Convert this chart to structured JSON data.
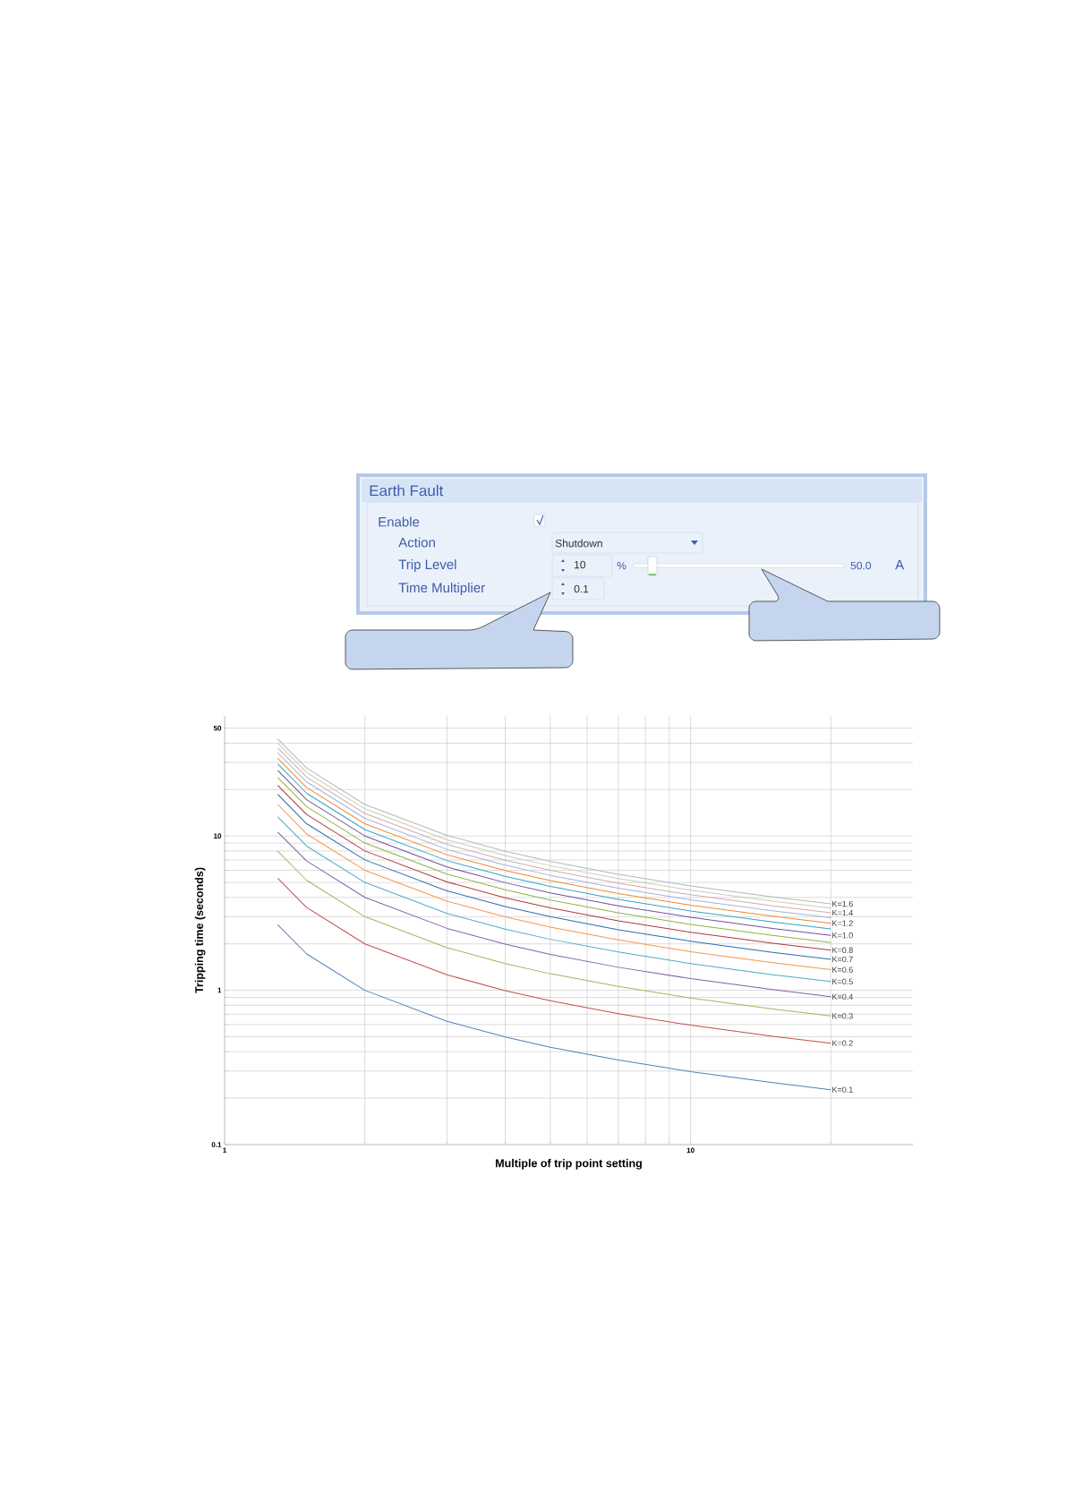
{
  "chart_data": [
    {
      "type": "other",
      "annotations": [
        "Earth Fault",
        "Enable",
        "Action",
        "Shutdown",
        "Trip Level",
        "10",
        "%",
        "50.0",
        "A",
        "Time Multiplier",
        "0.1"
      ]
    },
    {
      "type": "line",
      "xlabel": "Multiple of trip point setting",
      "ylabel": "Tripping time (seconds)",
      "log": "xy",
      "grid": true,
      "xlim": [
        1,
        30
      ],
      "ylim": [
        0.1,
        60
      ],
      "xticks": [
        1,
        {
          "value": 2,
          "label": null
        },
        {
          "value": 3,
          "label": null
        },
        {
          "value": 4,
          "label": null
        },
        {
          "value": 5,
          "label": null
        },
        {
          "value": 6,
          "label": null
        },
        {
          "value": 7,
          "label": null
        },
        {
          "value": 8,
          "label": null
        },
        {
          "value": 9,
          "label": null
        },
        10,
        {
          "value": 20,
          "label": null
        }
      ],
      "yticks": [
        0.1,
        {
          "value": 0.2,
          "label": null
        },
        {
          "value": 0.3,
          "label": null
        },
        {
          "value": 0.4,
          "label": null
        },
        {
          "value": 0.5,
          "label": null
        },
        {
          "value": 0.6,
          "label": null
        },
        {
          "value": 0.7,
          "label": null
        },
        {
          "value": 0.8,
          "label": null
        },
        {
          "value": 0.9,
          "label": null
        },
        1,
        {
          "value": 2,
          "label": null
        },
        {
          "value": 3,
          "label": null
        },
        {
          "value": 4,
          "label": null
        },
        {
          "value": 5,
          "label": null
        },
        {
          "value": 6,
          "label": null
        },
        {
          "value": 7,
          "label": null
        },
        {
          "value": 8,
          "label": null
        },
        {
          "value": 9,
          "label": null
        },
        10,
        {
          "value": 20,
          "label": null
        },
        {
          "value": 30,
          "label": null
        },
        {
          "value": 40,
          "label": null
        },
        50
      ],
      "x": [
        1.3,
        1.5,
        2,
        3,
        4,
        5,
        7,
        10,
        15,
        20
      ],
      "series": [
        {
          "name": "K=0.1",
          "color": "#4f81bd",
          "values": [
            2.66,
            1.72,
            1.0,
            0.63,
            0.498,
            0.428,
            0.353,
            0.297,
            0.252,
            0.227
          ]
        },
        {
          "name": "K=0.2",
          "color": "#c0504d",
          "values": [
            5.32,
            3.44,
            2.0,
            1.26,
            0.996,
            0.856,
            0.706,
            0.594,
            0.504,
            0.454
          ]
        },
        {
          "name": "K=0.3",
          "color": "#9bbb59",
          "values": [
            7.98,
            5.16,
            3.0,
            1.89,
            1.49,
            1.28,
            1.06,
            0.891,
            0.756,
            0.681
          ]
        },
        {
          "name": "K=0.4",
          "color": "#8064a2",
          "values": [
            10.6,
            6.88,
            4.0,
            2.52,
            1.99,
            1.71,
            1.41,
            1.19,
            1.01,
            0.908
          ]
        },
        {
          "name": "K=0.5",
          "color": "#4bacc6",
          "values": [
            13.3,
            8.6,
            5.0,
            3.15,
            2.49,
            2.14,
            1.77,
            1.49,
            1.26,
            1.14
          ]
        },
        {
          "name": "K=0.6",
          "color": "#f79646",
          "values": [
            16.0,
            10.3,
            6.0,
            3.78,
            2.99,
            2.57,
            2.12,
            1.78,
            1.51,
            1.36
          ]
        },
        {
          "name": "K=0.7",
          "color": "#2c6bb0",
          "values": [
            18.6,
            12.0,
            7.0,
            4.41,
            3.49,
            3.0,
            2.47,
            2.08,
            1.76,
            1.59
          ]
        },
        {
          "name": "K=0.8",
          "color": "#b03a37",
          "values": [
            21.3,
            13.8,
            8.0,
            5.04,
            3.98,
            3.42,
            2.82,
            2.38,
            2.02,
            1.82
          ]
        },
        {
          "color": "#8fb347",
          "values": [
            23.9,
            15.5,
            9.0,
            5.67,
            4.48,
            3.85,
            3.18,
            2.67,
            2.27,
            2.04
          ]
        },
        {
          "name": "K=1.0",
          "color": "#6f52a0",
          "values": [
            26.6,
            17.2,
            10.0,
            6.3,
            4.98,
            4.28,
            3.53,
            2.97,
            2.52,
            2.27
          ]
        },
        {
          "color": "#35a6c4",
          "values": [
            29.3,
            18.9,
            11.0,
            6.93,
            5.48,
            4.71,
            3.88,
            3.27,
            2.77,
            2.5
          ]
        },
        {
          "name": "K=1.2",
          "color": "#f08a30",
          "values": [
            31.9,
            20.6,
            12.0,
            7.56,
            5.98,
            5.14,
            4.24,
            3.56,
            3.02,
            2.72
          ]
        },
        {
          "color": "#9db4da",
          "values": [
            34.6,
            22.4,
            13.0,
            8.19,
            6.47,
            5.56,
            4.59,
            3.86,
            3.28,
            2.95
          ]
        },
        {
          "name": "K=1.4",
          "color": "#d6a9a8",
          "values": [
            37.2,
            24.1,
            14.0,
            8.82,
            6.97,
            5.99,
            4.94,
            4.16,
            3.53,
            3.18
          ]
        },
        {
          "color": "#c5cfb0",
          "values": [
            39.9,
            25.8,
            15.0,
            9.45,
            7.47,
            6.42,
            5.3,
            4.46,
            3.78,
            3.41
          ]
        },
        {
          "name": "K=1.6",
          "color": "#b7b7bd",
          "values": [
            42.6,
            27.5,
            16.0,
            10.1,
            7.97,
            6.85,
            5.65,
            4.75,
            4.03,
            3.63
          ]
        }
      ]
    }
  ]
}
